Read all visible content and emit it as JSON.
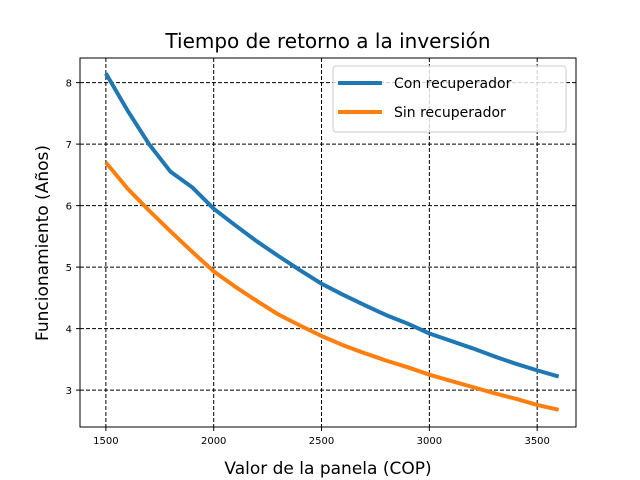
{
  "chart_data": {
    "type": "line",
    "title": "Tiempo de retorno a la inversión",
    "xlabel": "Valor de la panela (COP)",
    "ylabel": "Funcionamiento (Años)",
    "xlim": [
      1380,
      3680
    ],
    "ylim": [
      2.4,
      8.4
    ],
    "xticks": [
      1500,
      2000,
      2500,
      3000,
      3500
    ],
    "yticks": [
      3,
      4,
      5,
      6,
      7,
      8
    ],
    "grid": true,
    "grid_style": "dashed",
    "legend_position": "top-right",
    "x": [
      1500,
      1600,
      1700,
      1800,
      1900,
      2000,
      2100,
      2200,
      2300,
      2400,
      2500,
      2600,
      2700,
      2800,
      2900,
      3000,
      3100,
      3200,
      3300,
      3400,
      3500,
      3600
    ],
    "series": [
      {
        "name": "Con recuperador",
        "color": "#1f77b4",
        "values": [
          8.15,
          7.55,
          7.0,
          6.55,
          6.3,
          5.95,
          5.68,
          5.42,
          5.18,
          4.95,
          4.73,
          4.55,
          4.38,
          4.22,
          4.08,
          3.92,
          3.8,
          3.68,
          3.55,
          3.43,
          3.32,
          3.22
        ]
      },
      {
        "name": "Sin recuperador",
        "color": "#ff7f0e",
        "values": [
          6.7,
          6.28,
          5.92,
          5.58,
          5.25,
          4.93,
          4.68,
          4.45,
          4.23,
          4.05,
          3.88,
          3.73,
          3.6,
          3.48,
          3.37,
          3.25,
          3.15,
          3.05,
          2.95,
          2.86,
          2.76,
          2.68
        ]
      }
    ]
  }
}
